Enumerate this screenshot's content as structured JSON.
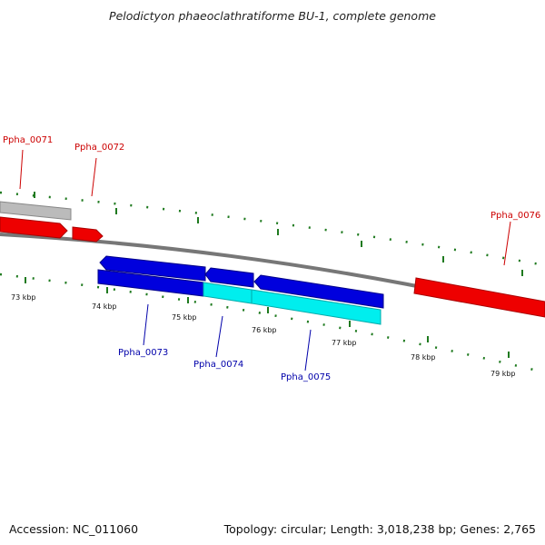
{
  "title": "Pelodictyon phaeoclathratiforme BU-1, complete genome",
  "footer": {
    "accession": "Accession: NC_011060",
    "stats": "Topology: circular; Length: 3,018,238 bp; Genes: 2,765"
  },
  "colors": {
    "red_gene": "#ee0000",
    "blue_gene": "#0000dd",
    "cyan_gene": "#00eeee",
    "gray_gene": "#bbbbbb",
    "backbone": "#777777",
    "ticks": "#1f7a1f",
    "label_red": "#cc0000",
    "label_blue": "#0000aa"
  },
  "ticks": [
    "73 kbp",
    "74 kbp",
    "75 kbp",
    "76 kbp",
    "77 kbp",
    "78 kbp",
    "79 kbp"
  ],
  "genes": [
    {
      "label": "Ppha_0071",
      "color": "gray"
    },
    {
      "label": "Ppha_0072",
      "color": "red"
    },
    {
      "label": "Ppha_0073",
      "color": "blue"
    },
    {
      "label": "Ppha_0074",
      "color": "blue"
    },
    {
      "label": "Ppha_0075",
      "color": "blue"
    },
    {
      "label": "Ppha_0076",
      "color": "red"
    }
  ]
}
